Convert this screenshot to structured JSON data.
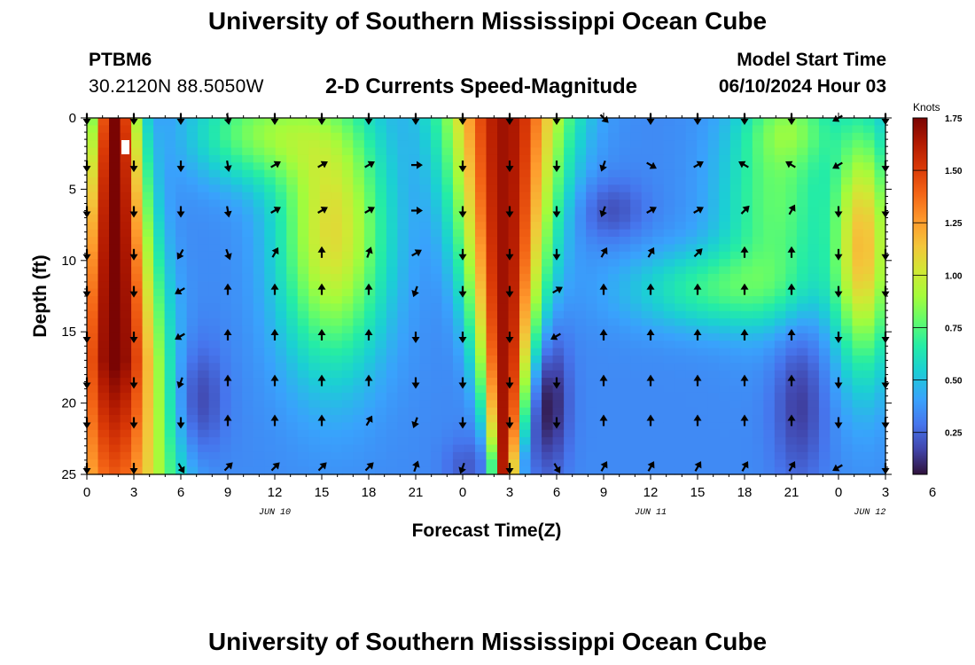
{
  "header": {
    "title": "University of Southern Mississippi Ocean Cube",
    "station_id": "PTBM6",
    "coordinates": "30.2120N  88.5050W",
    "subtitle": "2-D Currents Speed-Magnitude",
    "model_start_label": "Model Start Time",
    "model_start_value": "06/10/2024 Hour 03"
  },
  "footer": {
    "title": "University of Southern Mississippi Ocean Cube"
  },
  "colors": {
    "low": "#30123b",
    "high": "#7a0403",
    "arrows": "#000000"
  },
  "chart_data": {
    "type": "heatmap",
    "title": "2-D Currents Speed-Magnitude",
    "xlabel": "Forecast Time(Z)",
    "ylabel": "Depth (ft)",
    "x_hours": [
      0,
      51
    ],
    "x_ticks": [
      "0",
      "3",
      "6",
      "9",
      "12",
      "15",
      "18",
      "21",
      "0",
      "3",
      "6",
      "9",
      "12",
      "15",
      "18",
      "21",
      "0",
      "3",
      "6"
    ],
    "date_labels": [
      {
        "label": "JUN 10",
        "hour": 12
      },
      {
        "label": "JUN 11",
        "hour": 36
      },
      {
        "label": "JUN 12",
        "hour": 50
      }
    ],
    "ylim": [
      0,
      25
    ],
    "y_ticks": [
      0,
      5,
      10,
      15,
      20,
      25
    ],
    "colorbar": {
      "label": "Knots",
      "range": [
        0.05,
        1.75
      ],
      "ticks": [
        "0.25",
        "0.50",
        "0.75",
        "1.00",
        "1.25",
        "1.50",
        "1.75"
      ]
    },
    "arrow_hours": [
      0,
      3,
      6,
      9,
      12,
      15,
      18,
      21,
      24,
      27,
      30,
      33,
      36,
      39,
      42,
      45,
      48,
      51
    ],
    "arrow_depths_ft": [
      0,
      3.3,
      6.5,
      9.5,
      12.1,
      15.3,
      18.5,
      21.3,
      24.5
    ],
    "arrow_directions_deg": [
      [
        180,
        180,
        180,
        170,
        180,
        180,
        180,
        180,
        180,
        180,
        180,
        135,
        180,
        180,
        180,
        180,
        240,
        180
      ],
      [
        180,
        180,
        180,
        170,
        60,
        60,
        60,
        90,
        180,
        180,
        180,
        200,
        120,
        60,
        300,
        300,
        240,
        180
      ],
      [
        180,
        180,
        180,
        170,
        60,
        60,
        60,
        90,
        180,
        180,
        180,
        200,
        60,
        60,
        45,
        30,
        180,
        180
      ],
      [
        180,
        180,
        210,
        160,
        30,
        0,
        20,
        60,
        180,
        180,
        180,
        30,
        30,
        45,
        0,
        0,
        180,
        180
      ],
      [
        180,
        180,
        240,
        0,
        0,
        0,
        0,
        200,
        180,
        180,
        60,
        0,
        0,
        0,
        0,
        0,
        180,
        180
      ],
      [
        180,
        180,
        240,
        0,
        0,
        0,
        0,
        180,
        180,
        180,
        240,
        0,
        0,
        0,
        0,
        0,
        180,
        180
      ],
      [
        180,
        180,
        200,
        0,
        0,
        0,
        0,
        180,
        180,
        180,
        180,
        0,
        0,
        0,
        0,
        0,
        180,
        180
      ],
      [
        180,
        180,
        180,
        0,
        0,
        0,
        30,
        200,
        180,
        180,
        180,
        0,
        0,
        0,
        0,
        0,
        180,
        180
      ],
      [
        180,
        180,
        150,
        45,
        45,
        45,
        45,
        20,
        200,
        180,
        150,
        30,
        30,
        30,
        30,
        30,
        240,
        180
      ]
    ]
  }
}
